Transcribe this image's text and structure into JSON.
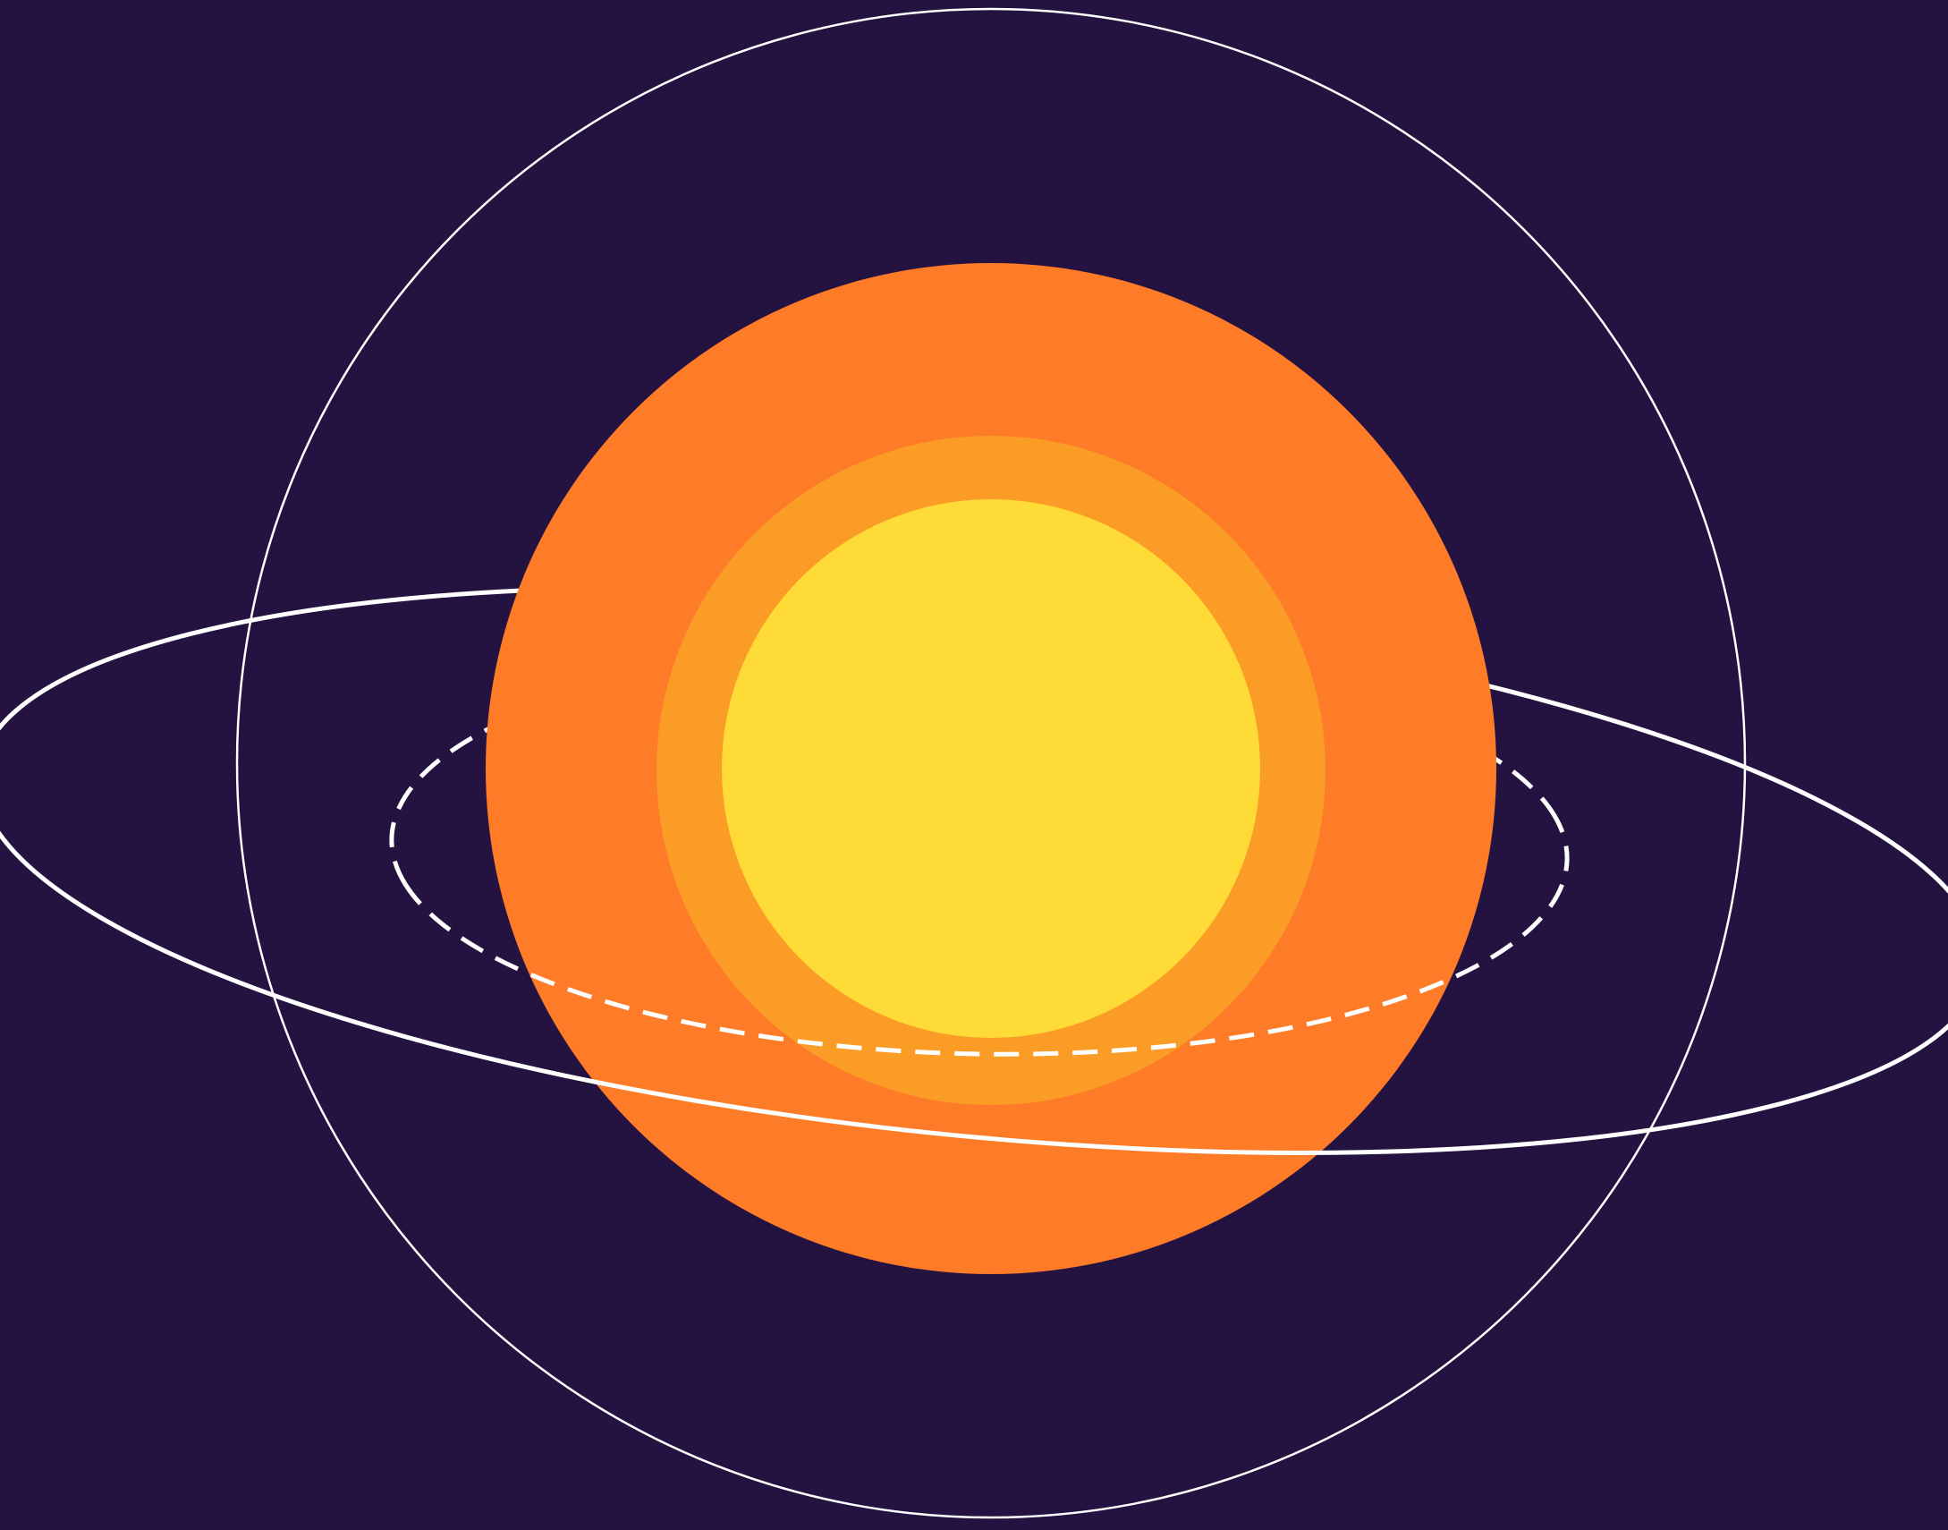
{
  "colors": {
    "background": "#241240",
    "outer_ring": "#ffffff",
    "corona": "#fe7b28",
    "inner_glow": "#fb9c26",
    "core": "#ffdb38",
    "orbit_solid": "#ffffff",
    "orbit_dashed": "#ffffff"
  },
  "elements": {
    "outer_ring": "outer-ring",
    "sun_corona": "sun-corona",
    "sun_inner_glow": "sun-inner-glow",
    "sun_core": "sun-core",
    "solid_orbit": "solid-orbit",
    "dashed_orbit": "dashed-orbit"
  }
}
